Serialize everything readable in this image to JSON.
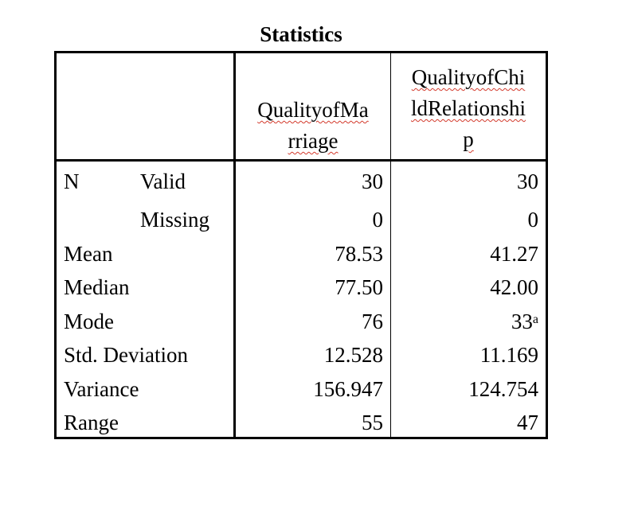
{
  "title": "Statistics",
  "columns": [
    {
      "label_lines": [
        "QualityofMa",
        "rriage"
      ]
    },
    {
      "label_lines": [
        "QualityofChi",
        "ldRelationshi",
        "p"
      ]
    }
  ],
  "rows": [
    {
      "group": "N",
      "label": "Valid",
      "values": [
        "30",
        "30"
      ]
    },
    {
      "group": "",
      "label": "Missing",
      "values": [
        "0",
        "0"
      ]
    },
    {
      "group": "",
      "label": "Mean",
      "values": [
        "78.53",
        "41.27"
      ]
    },
    {
      "group": "",
      "label": "Median",
      "values": [
        "77.50",
        "42.00"
      ]
    },
    {
      "group": "",
      "label": "Mode",
      "values": [
        "76",
        "33"
      ]
    },
    {
      "group": "",
      "label": "Std. Deviation",
      "values": [
        "12.528",
        "11.169"
      ]
    },
    {
      "group": "",
      "label": "Variance",
      "values": [
        "156.947",
        "124.754"
      ]
    },
    {
      "group": "",
      "label": "Range",
      "values": [
        "55",
        "47"
      ]
    }
  ],
  "footnote_marker": "a"
}
